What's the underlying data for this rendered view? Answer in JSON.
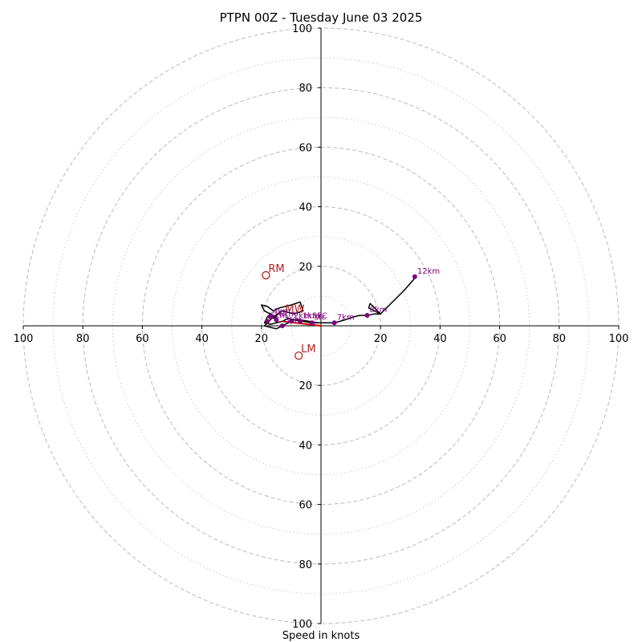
{
  "chart_data": {
    "type": "hodograph",
    "title": "PTPN 00Z - Tuesday June 03 2025",
    "xlabel": "Speed in knots",
    "xlim": [
      -100,
      100
    ],
    "ylim": [
      -100,
      100
    ],
    "rings": {
      "major": [
        20,
        40,
        60,
        80,
        100
      ],
      "minor": [
        10,
        30,
        50,
        70,
        90
      ]
    },
    "x_tick_labels": [
      "100",
      "80",
      "60",
      "40",
      "20",
      "20",
      "40",
      "60",
      "80",
      "100"
    ],
    "x_tick_values": [
      -100,
      -80,
      -60,
      -40,
      -20,
      20,
      40,
      60,
      80,
      100
    ],
    "y_tick_labels": [
      "100",
      "80",
      "60",
      "40",
      "20",
      "20",
      "40",
      "60",
      "80",
      "100"
    ],
    "y_tick_values": [
      100,
      80,
      60,
      40,
      20,
      -20,
      -40,
      -60,
      -80,
      -100
    ],
    "colors": {
      "hodograph_line": "#000000",
      "height_marker": "#800080",
      "storm_motion": "#b22222",
      "sfc_line": "#cc0000",
      "grid": "#bbbbbb"
    },
    "hodograph": [
      [
        0,
        1
      ],
      [
        -3,
        1
      ],
      [
        -6,
        1.5
      ],
      [
        -9,
        2
      ],
      [
        -11,
        2.5
      ],
      [
        -13,
        1.5
      ],
      [
        -15,
        1
      ],
      [
        -17,
        0.5
      ],
      [
        -19,
        1
      ],
      [
        -18,
        3
      ],
      [
        -17,
        4
      ],
      [
        -16,
        2.5
      ],
      [
        -15,
        3
      ],
      [
        -17,
        4
      ],
      [
        -19,
        5
      ],
      [
        -20,
        7
      ],
      [
        -18,
        6.5
      ],
      [
        -16,
        5
      ],
      [
        -14,
        6
      ],
      [
        -12,
        6.5
      ],
      [
        -10,
        7
      ],
      [
        -7,
        8
      ],
      [
        -6,
        5
      ],
      [
        -9,
        4
      ],
      [
        -13,
        5
      ],
      [
        -16,
        3
      ],
      [
        -17,
        2
      ],
      [
        -18,
        1
      ],
      [
        -19,
        0
      ],
      [
        -17,
        -0.5
      ],
      [
        -15,
        -1
      ],
      [
        -13,
        0
      ],
      [
        -11,
        1
      ],
      [
        -9,
        2
      ],
      [
        -7,
        2
      ],
      [
        -4,
        1.5
      ],
      [
        -1,
        1
      ],
      [
        2,
        1
      ],
      [
        4.5,
        1
      ],
      [
        8,
        2
      ],
      [
        11,
        3
      ],
      [
        13,
        3.5
      ],
      [
        15.5,
        3.5
      ],
      [
        18,
        4
      ],
      [
        20,
        4
      ],
      [
        16,
        6
      ],
      [
        16.5,
        7.5
      ],
      [
        17,
        7
      ],
      [
        20,
        4
      ],
      [
        22,
        6
      ],
      [
        25,
        9
      ],
      [
        28,
        12
      ],
      [
        31.5,
        16
      ]
    ],
    "height_markers": [
      {
        "label": "sfc",
        "u": -3,
        "v": 1
      },
      {
        "label": "1km",
        "u": -7,
        "v": 1.5
      },
      {
        "label": "2km",
        "u": -10,
        "v": 1.5
      },
      {
        "label": "3km",
        "u": -13,
        "v": 0
      },
      {
        "label": "4km",
        "u": -17,
        "v": 3
      },
      {
        "label": "5km",
        "u": -18,
        "v": 1.5
      },
      {
        "label": "6km",
        "u": -15,
        "v": 2
      },
      {
        "label": "7km",
        "u": 4.5,
        "v": 1
      },
      {
        "label": "8km",
        "u": 15.5,
        "v": 3.5
      },
      {
        "label": "12km",
        "u": 31.5,
        "v": 16.5
      }
    ],
    "storm_motion": [
      {
        "label": "RM",
        "u": -18.5,
        "v": 17
      },
      {
        "label": "LM",
        "u": -7.5,
        "v": -10
      }
    ],
    "mean_wind_label": "MW",
    "sfc_label": "SFC"
  }
}
